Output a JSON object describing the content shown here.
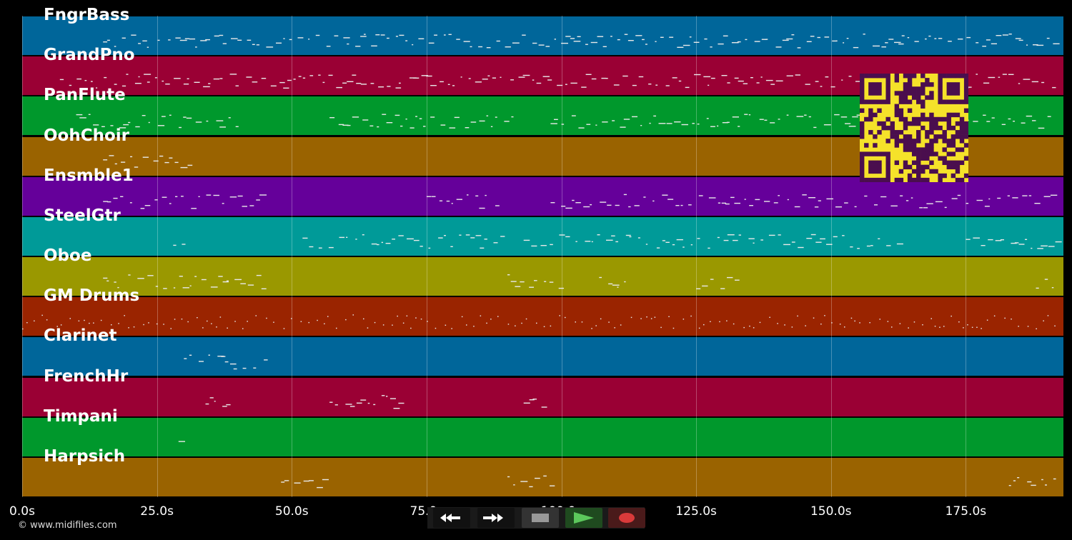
{
  "tracks": [
    {
      "name": "FngrBass",
      "color": "#00669a"
    },
    {
      "name": "GrandPno",
      "color": "#9a0034"
    },
    {
      "name": "PanFlute",
      "color": "#00982c"
    },
    {
      "name": "OohChoir",
      "color": "#9a6300"
    },
    {
      "name": "Ensmble1",
      "color": "#65009a"
    },
    {
      "name": "SteelGtr",
      "color": "#009a98"
    },
    {
      "name": "Oboe",
      "color": "#9a9800"
    },
    {
      "name": "GM Drums",
      "color": "#9a2400"
    },
    {
      "name": "Clarinet",
      "color": "#00669a"
    },
    {
      "name": "FrenchHr",
      "color": "#9a0034"
    },
    {
      "name": "Timpani",
      "color": "#00982c"
    },
    {
      "name": "Harpsich",
      "color": "#9a6300"
    }
  ],
  "time_axis": {
    "ticks": [
      "0.0s",
      "25.0s",
      "50.0s",
      "75.0s",
      "100.0s",
      "125.0s",
      "150.0s",
      "175.0s"
    ]
  },
  "transport": {
    "rewind_icon": "rewind-icon",
    "fast_forward_icon": "fast-forward-icon",
    "stop_icon": "stop-icon",
    "play_icon": "play-icon",
    "record_icon": "record-icon",
    "play_color": "#5cc85c",
    "record_color": "#d93a3a"
  },
  "qr_colors": {
    "dark": "#4a0e4e",
    "light": "#f5e22a"
  },
  "copyright": "© www.midifiles.com"
}
